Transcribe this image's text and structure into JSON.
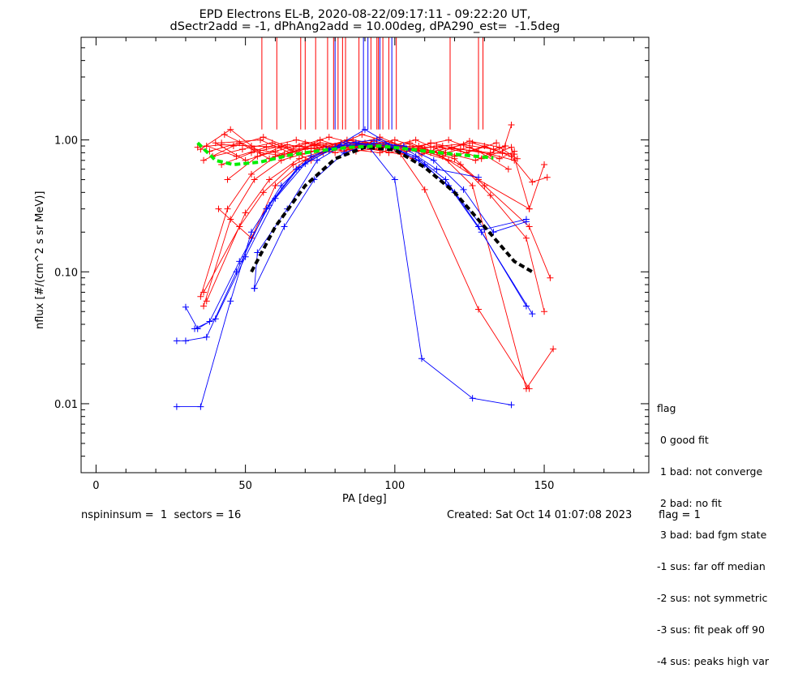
{
  "chart_data": {
    "type": "line",
    "title_line1": "EPD Electrons EL-B, 2020-08-22/09:17:11 - 09:22:20 UT,",
    "title_line2": "dSectr2add = -1, dPhAng2add = 10.00deg, dPA290_est=  -1.5deg",
    "xlabel": "PA [deg]",
    "ylabel": "nflux [#/(cm^2 s sr MeV)]",
    "xlim": [
      -5,
      185
    ],
    "ylim": [
      0.003,
      6.0
    ],
    "yscale": "log",
    "xticks": [
      0,
      50,
      100,
      150
    ],
    "yticks": [
      0.01,
      0.1,
      1.0
    ],
    "ytick_labels": [
      "0.01",
      "0.10",
      "1.00"
    ],
    "colors": {
      "sectors_flag1": "#ff0000",
      "sectors_flag0": "#0000ff",
      "median_fit": "#000000",
      "median_data": "#00ee00"
    },
    "red_series": [
      [
        [
          35,
          0.065
        ],
        [
          44,
          0.3
        ],
        [
          52,
          0.55
        ],
        [
          60,
          0.75
        ],
        [
          70,
          0.85
        ],
        [
          80,
          0.9
        ],
        [
          90,
          0.92
        ],
        [
          100,
          0.9
        ],
        [
          110,
          0.85
        ],
        [
          120,
          0.72
        ],
        [
          130,
          0.45
        ],
        [
          145,
          0.22
        ],
        [
          152,
          0.09
        ]
      ],
      [
        [
          36,
          0.055
        ],
        [
          45,
          0.25
        ],
        [
          53,
          0.5
        ],
        [
          62,
          0.7
        ],
        [
          72,
          0.82
        ],
        [
          82,
          0.88
        ],
        [
          92,
          0.9
        ],
        [
          102,
          0.88
        ],
        [
          112,
          0.8
        ],
        [
          122,
          0.65
        ],
        [
          132,
          0.38
        ],
        [
          144,
          0.18
        ],
        [
          150,
          0.05
        ]
      ],
      [
        [
          37,
          0.06
        ],
        [
          50,
          0.28
        ],
        [
          58,
          0.5
        ],
        [
          68,
          0.72
        ],
        [
          78,
          0.85
        ],
        [
          88,
          0.9
        ],
        [
          98,
          0.88
        ],
        [
          108,
          0.82
        ],
        [
          118,
          0.7
        ],
        [
          128,
          0.5
        ],
        [
          145,
          0.3
        ]
      ],
      [
        [
          36,
          0.07
        ],
        [
          48,
          0.22
        ],
        [
          56,
          0.4
        ],
        [
          66,
          0.65
        ],
        [
          76,
          0.8
        ],
        [
          86,
          0.88
        ],
        [
          96,
          0.9
        ],
        [
          106,
          0.86
        ],
        [
          116,
          0.75
        ],
        [
          126,
          0.45
        ],
        [
          144,
          0.013
        ],
        [
          153,
          0.026
        ]
      ],
      [
        [
          41,
          0.3
        ],
        [
          52,
          0.18
        ],
        [
          60,
          0.45
        ],
        [
          70,
          0.7
        ],
        [
          80,
          0.88
        ],
        [
          90,
          0.95
        ],
        [
          100,
          0.9
        ],
        [
          110,
          0.42
        ],
        [
          128,
          0.052
        ],
        [
          145,
          0.013
        ]
      ],
      [
        [
          34,
          0.88
        ],
        [
          42,
          0.92
        ],
        [
          52,
          0.9
        ],
        [
          62,
          0.88
        ],
        [
          72,
          0.9
        ],
        [
          82,
          0.95
        ],
        [
          92,
          0.93
        ],
        [
          102,
          0.9
        ],
        [
          112,
          0.88
        ],
        [
          122,
          0.85
        ],
        [
          132,
          0.8
        ],
        [
          140,
          0.78
        ]
      ],
      [
        [
          35,
          0.85
        ],
        [
          45,
          1.2
        ],
        [
          55,
          0.8
        ],
        [
          65,
          0.75
        ],
        [
          75,
          1.0
        ],
        [
          85,
          0.85
        ],
        [
          95,
          0.8
        ],
        [
          105,
          0.95
        ],
        [
          115,
          0.78
        ],
        [
          125,
          0.88
        ],
        [
          135,
          0.72
        ],
        [
          140,
          0.82
        ]
      ],
      [
        [
          36,
          0.7
        ],
        [
          46,
          0.9
        ],
        [
          56,
          1.05
        ],
        [
          66,
          0.85
        ],
        [
          76,
          0.88
        ],
        [
          86,
          1.0
        ],
        [
          96,
          0.92
        ],
        [
          106,
          0.72
        ],
        [
          116,
          0.9
        ],
        [
          126,
          0.95
        ],
        [
          136,
          0.8
        ],
        [
          139,
          1.3
        ]
      ],
      [
        [
          37,
          0.9
        ],
        [
          47,
          0.75
        ],
        [
          57,
          0.88
        ],
        [
          67,
          1.0
        ],
        [
          77,
          0.9
        ],
        [
          87,
          0.82
        ],
        [
          97,
          0.88
        ],
        [
          107,
          1.0
        ],
        [
          117,
          0.8
        ],
        [
          127,
          0.7
        ],
        [
          137,
          0.9
        ]
      ],
      [
        [
          38,
          0.82
        ],
        [
          48,
          0.95
        ],
        [
          58,
          0.72
        ],
        [
          68,
          0.9
        ],
        [
          78,
          1.05
        ],
        [
          88,
          0.92
        ],
        [
          98,
          0.8
        ],
        [
          108,
          0.9
        ],
        [
          118,
          1.0
        ],
        [
          128,
          0.82
        ],
        [
          138,
          0.6
        ]
      ],
      [
        [
          39,
          0.75
        ],
        [
          49,
          0.85
        ],
        [
          59,
          0.95
        ],
        [
          69,
          0.78
        ],
        [
          79,
          0.88
        ],
        [
          89,
          1.1
        ],
        [
          99,
          0.95
        ],
        [
          109,
          0.78
        ],
        [
          119,
          0.88
        ],
        [
          129,
          0.72
        ],
        [
          139,
          0.88
        ],
        [
          145,
          0.3
        ],
        [
          150,
          0.65
        ]
      ],
      [
        [
          40,
          0.95
        ],
        [
          50,
          0.7
        ],
        [
          60,
          0.82
        ],
        [
          70,
          0.95
        ],
        [
          80,
          0.8
        ],
        [
          90,
          0.9
        ],
        [
          100,
          1.0
        ],
        [
          110,
          0.85
        ],
        [
          120,
          0.75
        ],
        [
          130,
          0.9
        ],
        [
          139,
          0.75
        ],
        [
          146,
          0.48
        ],
        [
          151,
          0.52
        ]
      ],
      [
        [
          42,
          0.65
        ],
        [
          52,
          0.8
        ],
        [
          62,
          0.9
        ],
        [
          72,
          0.7
        ],
        [
          82,
          0.95
        ],
        [
          92,
          0.85
        ],
        [
          102,
          0.78
        ],
        [
          112,
          0.95
        ],
        [
          122,
          0.85
        ],
        [
          132,
          0.78
        ],
        [
          140,
          0.7
        ]
      ],
      [
        [
          43,
          1.1
        ],
        [
          53,
          0.85
        ],
        [
          63,
          0.78
        ],
        [
          73,
          0.92
        ],
        [
          83,
          0.82
        ],
        [
          93,
          0.98
        ],
        [
          103,
          0.88
        ],
        [
          113,
          0.82
        ],
        [
          123,
          0.92
        ],
        [
          133,
          0.85
        ],
        [
          137,
          0.9
        ]
      ],
      [
        [
          44,
          0.5
        ],
        [
          54,
          0.75
        ],
        [
          64,
          0.92
        ],
        [
          74,
          0.85
        ],
        [
          84,
          1.0
        ],
        [
          94,
          0.9
        ],
        [
          104,
          0.82
        ],
        [
          114,
          0.9
        ],
        [
          124,
          0.8
        ],
        [
          134,
          0.95
        ]
      ],
      [
        [
          42,
          0.95
        ],
        [
          55,
          1.0
        ],
        [
          65,
          0.8
        ],
        [
          75,
          0.95
        ],
        [
          85,
          0.9
        ],
        [
          95,
          1.05
        ],
        [
          105,
          0.85
        ],
        [
          115,
          0.8
        ],
        [
          125,
          0.98
        ],
        [
          135,
          0.88
        ],
        [
          141,
          0.72
        ]
      ]
    ],
    "blue_series": [
      [
        [
          27,
          0.0095
        ],
        [
          35,
          0.0095
        ],
        [
          45,
          0.06
        ],
        [
          52,
          0.2
        ],
        [
          62,
          0.45
        ],
        [
          72,
          0.75
        ],
        [
          82,
          0.92
        ],
        [
          91,
          0.9
        ],
        [
          100,
          0.5
        ],
        [
          109,
          0.022
        ],
        [
          126,
          0.011
        ],
        [
          139,
          0.0098
        ]
      ],
      [
        [
          27,
          0.03
        ],
        [
          30,
          0.03
        ],
        [
          37,
          0.032
        ],
        [
          47,
          0.1
        ],
        [
          57,
          0.3
        ],
        [
          67,
          0.6
        ],
        [
          77,
          0.85
        ],
        [
          87,
          0.95
        ],
        [
          97,
          0.9
        ],
        [
          107,
          0.75
        ],
        [
          117,
          0.5
        ],
        [
          128,
          0.22
        ],
        [
          144,
          0.055
        ]
      ],
      [
        [
          30,
          0.054
        ],
        [
          34,
          0.037
        ],
        [
          38,
          0.042
        ],
        [
          48,
          0.12
        ],
        [
          58,
          0.32
        ],
        [
          68,
          0.62
        ],
        [
          78,
          0.84
        ],
        [
          88,
          0.93
        ],
        [
          98,
          0.9
        ],
        [
          108,
          0.7
        ],
        [
          118,
          0.45
        ],
        [
          129,
          0.2
        ],
        [
          146,
          0.048
        ]
      ],
      [
        [
          33,
          0.037
        ],
        [
          40,
          0.044
        ],
        [
          50,
          0.13
        ],
        [
          60,
          0.36
        ],
        [
          70,
          0.66
        ],
        [
          80,
          0.88
        ],
        [
          90,
          1.2
        ],
        [
          100,
          0.88
        ],
        [
          110,
          0.65
        ],
        [
          120,
          0.4
        ],
        [
          130,
          0.21
        ],
        [
          144,
          0.25
        ]
      ],
      [
        [
          53,
          0.075
        ],
        [
          63,
          0.22
        ],
        [
          73,
          0.5
        ],
        [
          83,
          0.8
        ],
        [
          93,
          0.95
        ],
        [
          103,
          0.9
        ],
        [
          113,
          0.7
        ],
        [
          123,
          0.42
        ],
        [
          133,
          0.2
        ],
        [
          144,
          0.24
        ]
      ],
      [
        [
          53,
          0.075
        ],
        [
          54,
          0.14
        ],
        [
          64,
          0.3
        ],
        [
          74,
          0.7
        ],
        [
          84,
          0.95
        ],
        [
          94,
          1.0
        ],
        [
          104,
          0.85
        ],
        [
          114,
          0.6
        ],
        [
          128,
          0.52
        ]
      ]
    ],
    "median_fit": [
      [
        52,
        0.1
      ],
      [
        60,
        0.22
      ],
      [
        70,
        0.45
      ],
      [
        80,
        0.72
      ],
      [
        90,
        0.88
      ],
      [
        100,
        0.84
      ],
      [
        110,
        0.62
      ],
      [
        120,
        0.4
      ],
      [
        130,
        0.22
      ],
      [
        140,
        0.12
      ],
      [
        146,
        0.1
      ]
    ],
    "median_data": [
      [
        34,
        0.95
      ],
      [
        40,
        0.7
      ],
      [
        46,
        0.65
      ],
      [
        55,
        0.68
      ],
      [
        65,
        0.77
      ],
      [
        75,
        0.83
      ],
      [
        85,
        0.88
      ],
      [
        95,
        0.9
      ],
      [
        105,
        0.85
      ],
      [
        115,
        0.8
      ],
      [
        125,
        0.76
      ],
      [
        133,
        0.73
      ]
    ],
    "flag_lines_red": [
      55.5,
      60.5,
      68.5,
      70,
      73.5,
      77.5,
      79.5,
      81,
      82.5,
      83.5,
      88,
      92,
      94,
      94.5,
      96,
      98,
      100.5,
      118.5,
      128,
      129.5
    ],
    "flag_lines_blue": [
      80,
      89.5,
      91,
      95,
      99
    ]
  },
  "legend": [
    "flag",
    " 0 good fit",
    " 1 bad: not converge",
    " 2 bad: no fit",
    " 3 bad: bad fgm state",
    "-1 sus: far off median",
    "-2 sus: not symmetric",
    "-3 sus: fit peak off 90",
    "-4 sus: peaks high var"
  ],
  "footer": {
    "left": "nspininsum =  1  sectors = 16",
    "created": "Created: Sat Oct 14 01:07:08 2023",
    "flag": "flag = 1"
  }
}
